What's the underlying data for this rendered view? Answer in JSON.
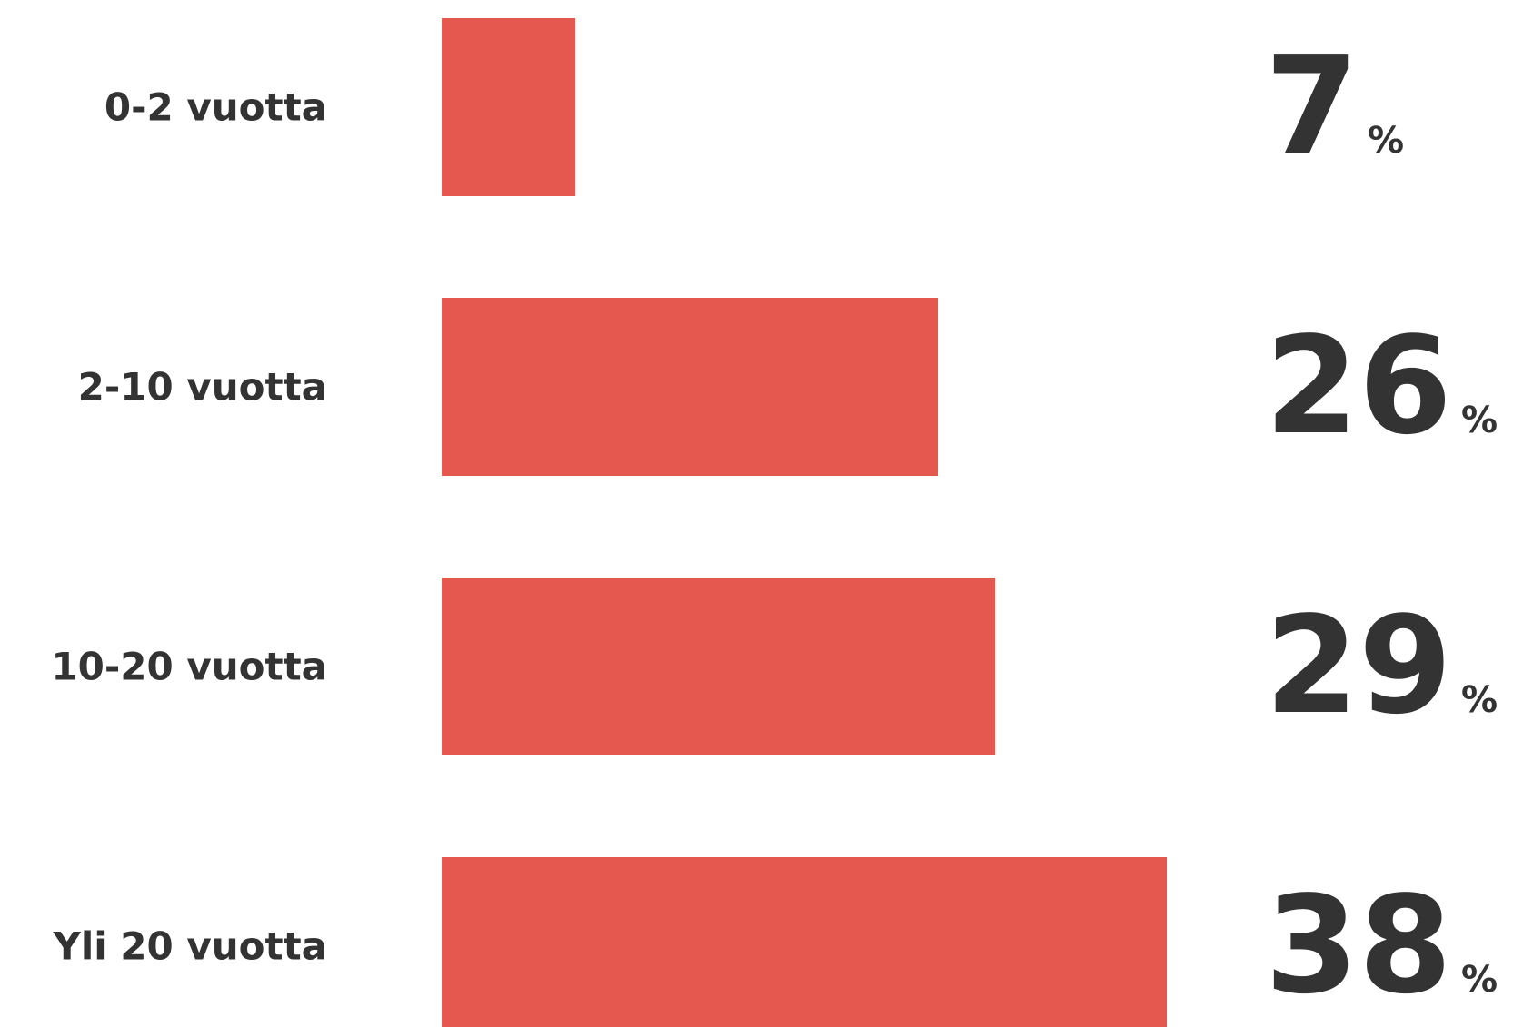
{
  "chart_data": {
    "type": "bar",
    "orientation": "horizontal",
    "categories": [
      "0-2 vuotta",
      "2-10 vuotta",
      "10-20 vuotta",
      "Yli 20 vuotta"
    ],
    "values": [
      7,
      26,
      29,
      38
    ],
    "value_unit": "%",
    "xlim": [
      0,
      38
    ],
    "grid": false,
    "legend": "none",
    "bar_color": "#e45850",
    "text_color": "#333333"
  }
}
